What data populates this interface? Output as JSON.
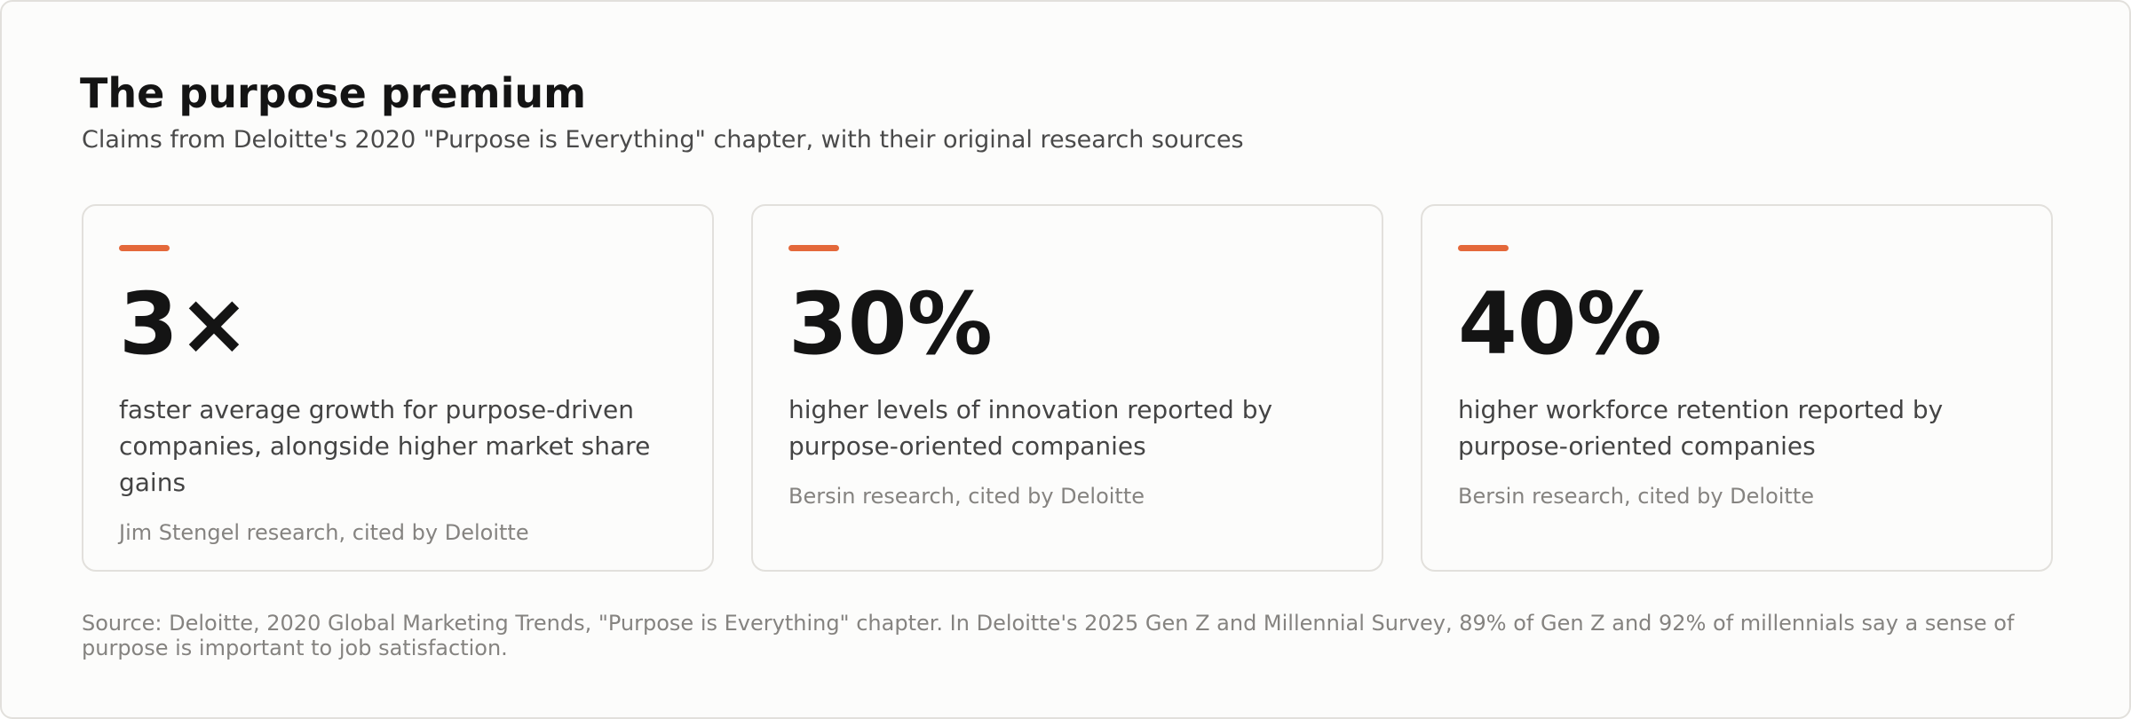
{
  "header": {
    "title": "The purpose premium",
    "subtitle": "Claims from Deloitte's 2020 \"Purpose is Everything\" chapter, with their original research sources"
  },
  "cards": [
    {
      "value": "3×",
      "description": "faster average growth for purpose-driven companies, alongside higher market share gains",
      "citation": "Jim Stengel research, cited by Deloitte"
    },
    {
      "value": "30%",
      "description": "higher levels of innovation reported by purpose-oriented companies",
      "citation": "Bersin research, cited by Deloitte"
    },
    {
      "value": "40%",
      "description": "higher workforce retention reported by purpose-oriented companies",
      "citation": "Bersin research, cited by Deloitte"
    }
  ],
  "footer": {
    "source": "Source: Deloitte, 2020 Global Marketing Trends, \"Purpose is Everything\" chapter. In Deloitte's 2025 Gen Z and Millennial Survey, 89% of Gen Z and 92% of millennials say a sense of purpose is important to job satisfaction."
  }
}
